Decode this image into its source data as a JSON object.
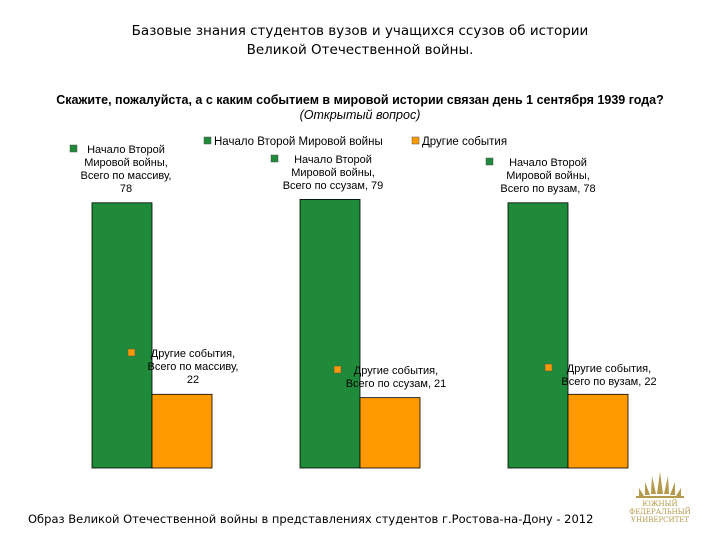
{
  "title": {
    "line1": "Базовые знания  студентов вузов  и учащихся ссузов об истории",
    "line2": "Великой Отечественной войны."
  },
  "question": {
    "main": "Скажите, пожалуйста, а с каким событием в мировой истории связан день 1 сентября 1939 года?",
    "note": "(Открытый вопрос)"
  },
  "footer": "Образ Великой Отечественной войны в представлениях студентов г.Ростова-на-Дону - 2012",
  "logo": {
    "text_line1": "ЮЖНЫЙ",
    "text_line2": "ФЕДЕРАЛЬНЫЙ",
    "text_line3": "УНИВЕРСИТЕТ"
  },
  "chart_data": {
    "type": "bar",
    "categories": [
      "Всего по массиву",
      "Всего по ссузам",
      "Всего по вузам"
    ],
    "series": [
      {
        "name": "Начало Второй Мировой войны",
        "color": "#1f8a3a",
        "values": [
          78,
          79,
          78
        ],
        "labels": [
          [
            "Начало Второй",
            "Мировой войны,",
            "Всего по массиву,",
            "78"
          ],
          [
            "Начало Второй",
            "Мировой войны,",
            "Всего по ссузам, 79"
          ],
          [
            "Начало Второй",
            "Мировой войны,",
            "Всего по вузам, 78"
          ]
        ]
      },
      {
        "name": "Другие события",
        "color": "#ff9900",
        "values": [
          22,
          21,
          22
        ],
        "labels": [
          [
            "Другие события,",
            "Всего по массиву,",
            "22"
          ],
          [
            "Другие события,",
            "Всего по ссузам, 21"
          ],
          [
            "Другие события,",
            "Всего по вузам, 22"
          ]
        ]
      }
    ],
    "ylim": [
      0,
      100
    ],
    "legend": "top",
    "grid": false
  }
}
